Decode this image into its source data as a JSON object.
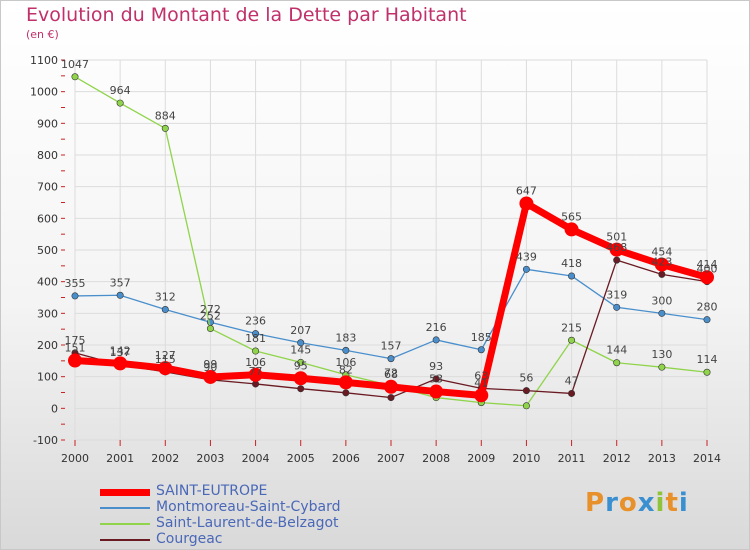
{
  "header": {
    "title": "Evolution du Montant de la Dette par Habitant",
    "unit": "(en €)"
  },
  "logo": {
    "text": "Proxiti",
    "colors": [
      "#e8902a",
      "#3a8fd0",
      "#e8902a",
      "#3a8fd0",
      "#8fc43a",
      "#e8902a",
      "#3a8fd0"
    ]
  },
  "chart_data": {
    "type": "line",
    "x": [
      "2000",
      "2001",
      "2002",
      "2003",
      "2004",
      "2005",
      "2006",
      "2007",
      "2008",
      "2009",
      "2010",
      "2011",
      "2012",
      "2013",
      "2014"
    ],
    "ylim": [
      -100,
      1100
    ],
    "yticks": [
      -100,
      0,
      100,
      200,
      300,
      400,
      500,
      600,
      700,
      800,
      900,
      1000,
      1100
    ],
    "grid": true,
    "legend_position": "bottom-left",
    "series": [
      {
        "name": "SAINT-EUTROPE",
        "color": "#ff0000",
        "width": 7,
        "values": [
          151,
          142,
          127,
          99,
          106,
          95,
          82,
          68,
          53,
          41,
          647,
          565,
          501,
          454,
          414
        ],
        "labels": [
          "151",
          "142",
          "127",
          "99",
          "106",
          "95",
          "82",
          "68",
          "53",
          "41",
          "647",
          "565",
          "501",
          "454",
          "414"
        ]
      },
      {
        "name": "Montmoreau-Saint-Cybard",
        "color": "#4a8fcc",
        "width": 1.3,
        "values": [
          355,
          357,
          312,
          272,
          236,
          207,
          183,
          157,
          216,
          185,
          439,
          418,
          319,
          300,
          280
        ],
        "labels": [
          "355",
          "357",
          "312",
          "272",
          "236",
          "207",
          "183",
          "157",
          "216",
          "185",
          "439",
          "418",
          "319",
          "300",
          "280"
        ]
      },
      {
        "name": "Saint-Laurent-de-Belzagot",
        "color": "#8fd44a",
        "width": 1.3,
        "values": [
          1047,
          964,
          884,
          252,
          181,
          145,
          106,
          72,
          34,
          18,
          8,
          215,
          144,
          130,
          114
        ],
        "labels": [
          "1047",
          "964",
          "884",
          "252",
          "181",
          "145",
          "106",
          "72",
          "",
          "",
          "",
          "215",
          "144",
          "130",
          "114"
        ]
      },
      {
        "name": "Courgeac",
        "color": "#6a1a22",
        "width": 1.3,
        "values": [
          175,
          137,
          115,
          90,
          77,
          62,
          49,
          34,
          93,
          63,
          56,
          47,
          468,
          423,
          400
        ],
        "labels": [
          "175",
          "137",
          "115",
          "90",
          "77",
          "",
          "",
          "",
          "93",
          "63",
          "56",
          "47",
          "468",
          "423",
          "400"
        ]
      }
    ]
  }
}
